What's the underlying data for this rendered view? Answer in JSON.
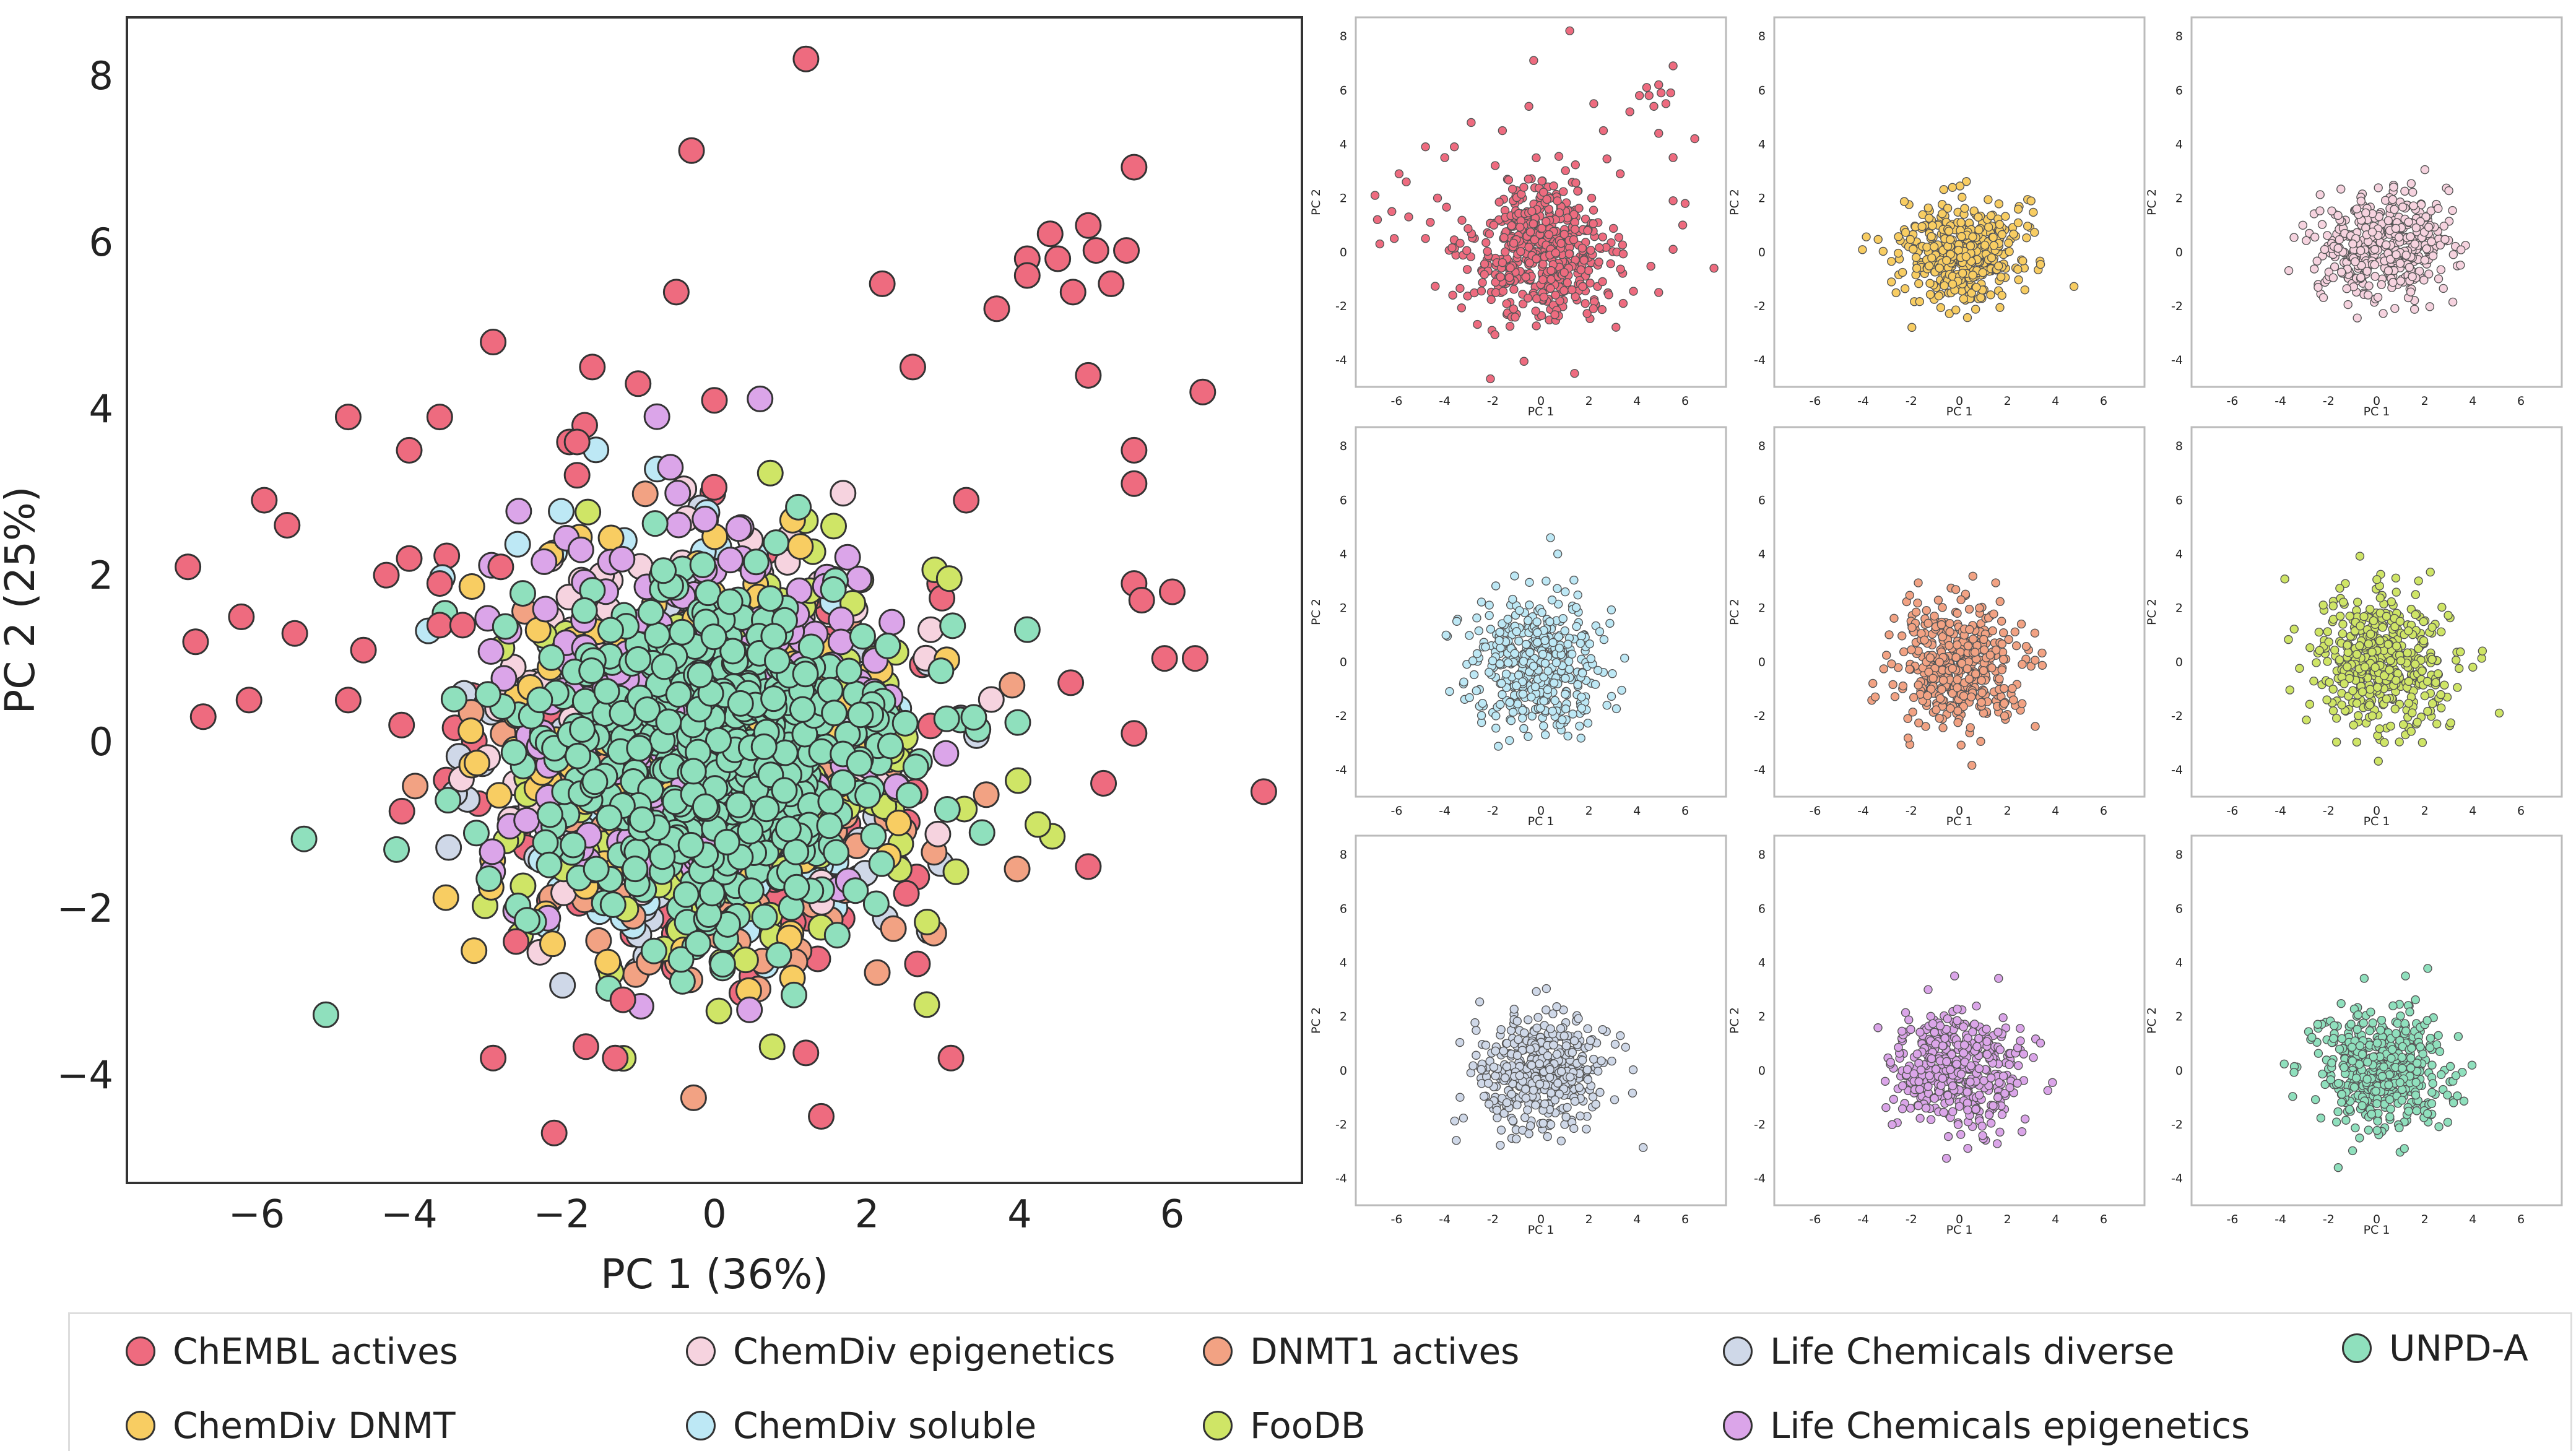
{
  "colors": {
    "ChEMBL actives": "#ee6b7f",
    "ChemDiv epigenetics": "#f6d3df",
    "DNMT1 actives": "#f2a283",
    "Life Chemicals diverse": "#cfd8e8",
    "UNPD-A": "#8fe0bd",
    "ChemDiv DNMT": "#f8cd62",
    "ChemDiv soluble": "#bde8f5",
    "FooDB": "#cfe566",
    "Life Chemicals epigenetics": "#dba5e9"
  },
  "chart_data": [
    {
      "type": "scatter",
      "id": "main",
      "xlabel": "PC 1 (36%)",
      "ylabel": "PC 2 (25%)",
      "xlim": [
        -7.7,
        7.7
      ],
      "ylim": [
        -5.3,
        8.7
      ],
      "xticks": [
        -6,
        -4,
        -2,
        0,
        2,
        4,
        6
      ],
      "yticks": [
        -4,
        -2,
        0,
        2,
        4,
        6,
        8
      ],
      "xtick_labels": [
        "−6",
        "−4",
        "−2",
        "0",
        "2",
        "4",
        "6"
      ],
      "ytick_labels": [
        "−4",
        "−2",
        "0",
        "2",
        "4",
        "6",
        "8"
      ],
      "grid": false,
      "series_order": [
        "ChEMBL actives",
        "Life Chemicals diverse",
        "ChemDiv soluble",
        "DNMT1 actives",
        "ChemDiv epigenetics",
        "FooDB",
        "ChemDiv DNMT",
        "Life Chemicals epigenetics",
        "UNPD-A"
      ],
      "outliers": {
        "name": "ChEMBL actives",
        "points": [
          [
            1.2,
            8.2
          ],
          [
            -0.3,
            7.1
          ],
          [
            5.5,
            6.9
          ],
          [
            4.9,
            6.2
          ],
          [
            4.4,
            6.1
          ],
          [
            5.0,
            5.9
          ],
          [
            5.4,
            5.9
          ],
          [
            4.1,
            5.8
          ],
          [
            4.5,
            5.8
          ],
          [
            4.1,
            5.6
          ],
          [
            4.7,
            5.4
          ],
          [
            5.2,
            5.5
          ],
          [
            2.2,
            5.5
          ],
          [
            -0.5,
            5.4
          ],
          [
            3.7,
            5.2
          ],
          [
            -2.9,
            4.8
          ],
          [
            2.6,
            4.5
          ],
          [
            -1.6,
            4.5
          ],
          [
            4.9,
            4.4
          ],
          [
            -1.0,
            4.3
          ],
          [
            6.4,
            4.2
          ],
          [
            0.0,
            4.1
          ],
          [
            -4.8,
            3.9
          ],
          [
            -3.6,
            3.9
          ],
          [
            -1.7,
            3.8
          ],
          [
            -1.9,
            3.6
          ],
          [
            -1.8,
            3.6
          ],
          [
            5.5,
            3.5
          ],
          [
            -4.0,
            3.5
          ],
          [
            -1.8,
            3.2
          ],
          [
            5.5,
            3.1
          ],
          [
            -5.9,
            2.9
          ],
          [
            3.3,
            2.9
          ],
          [
            -5.6,
            2.6
          ],
          [
            -4.0,
            2.2
          ],
          [
            -6.9,
            2.1
          ],
          [
            -2.8,
            2.1
          ],
          [
            -4.3,
            2.0
          ],
          [
            -3.6,
            1.9
          ],
          [
            5.5,
            1.9
          ],
          [
            6.0,
            1.8
          ],
          [
            5.6,
            1.7
          ],
          [
            -6.2,
            1.5
          ],
          [
            -3.6,
            1.4
          ],
          [
            -3.3,
            1.4
          ],
          [
            -5.5,
            1.3
          ],
          [
            -6.8,
            1.2
          ],
          [
            -4.6,
            1.1
          ],
          [
            5.9,
            1.0
          ],
          [
            6.3,
            1.0
          ],
          [
            -4.8,
            0.5
          ],
          [
            -6.1,
            0.5
          ],
          [
            -6.7,
            0.3
          ],
          [
            -4.1,
            0.2
          ],
          [
            5.5,
            0.1
          ],
          [
            5.1,
            -0.5
          ],
          [
            7.2,
            -0.6
          ],
          [
            4.9,
            -1.5
          ],
          [
            -2.6,
            -2.4
          ],
          [
            -1.2,
            -3.1
          ],
          [
            -2.9,
            -3.8
          ],
          [
            -1.3,
            -3.8
          ],
          [
            3.1,
            -3.8
          ],
          [
            1.4,
            -4.5
          ],
          [
            -2.1,
            -4.7
          ]
        ]
      }
    },
    {
      "type": "scatter",
      "id": "panel-1",
      "series": "ChEMBL actives",
      "xlabel": "PC 1",
      "ylabel": "PC 2",
      "xlim": [
        -7.7,
        7.7
      ],
      "ylim": [
        -5.0,
        8.7
      ],
      "xticks": [
        -6,
        -4,
        -2,
        0,
        2,
        4,
        6
      ],
      "yticks": [
        -4,
        -2,
        0,
        2,
        4,
        6,
        8
      ],
      "extra_points": [
        [
          1.2,
          8.2
        ],
        [
          -0.3,
          7.1
        ],
        [
          5.5,
          6.9
        ],
        [
          4.9,
          6.2
        ],
        [
          4.4,
          6.1
        ],
        [
          5.0,
          5.9
        ],
        [
          5.4,
          5.9
        ],
        [
          4.1,
          5.8
        ],
        [
          4.5,
          5.8
        ],
        [
          4.7,
          5.4
        ],
        [
          5.2,
          5.5
        ],
        [
          2.2,
          5.5
        ],
        [
          -0.5,
          5.4
        ],
        [
          3.7,
          5.2
        ],
        [
          -2.9,
          4.8
        ],
        [
          2.6,
          4.5
        ],
        [
          -1.6,
          4.5
        ],
        [
          4.9,
          4.4
        ],
        [
          6.4,
          4.2
        ],
        [
          -4.8,
          3.9
        ],
        [
          -3.6,
          3.9
        ],
        [
          5.5,
          3.5
        ],
        [
          -4.0,
          3.5
        ],
        [
          -5.9,
          2.9
        ],
        [
          3.3,
          2.9
        ],
        [
          -5.6,
          2.6
        ],
        [
          -6.9,
          2.1
        ],
        [
          -4.3,
          2.0
        ],
        [
          5.5,
          1.9
        ],
        [
          6.0,
          1.8
        ],
        [
          -6.2,
          1.5
        ],
        [
          -5.5,
          1.3
        ],
        [
          -6.8,
          1.2
        ],
        [
          -4.6,
          1.1
        ],
        [
          5.9,
          1.0
        ],
        [
          -4.8,
          0.5
        ],
        [
          -6.1,
          0.5
        ],
        [
          -6.7,
          0.3
        ],
        [
          5.5,
          0.1
        ],
        [
          7.2,
          -0.6
        ],
        [
          4.9,
          -1.5
        ],
        [
          -2.1,
          -4.7
        ],
        [
          1.4,
          -4.5
        ]
      ]
    },
    {
      "type": "scatter",
      "id": "panel-2",
      "series": "ChemDiv DNMT",
      "xlabel": "PC 1",
      "ylabel": "PC 2",
      "xlim": [
        -7.7,
        7.7
      ],
      "ylim": [
        -5.0,
        8.7
      ],
      "xticks": [
        -6,
        -4,
        -2,
        0,
        2,
        4,
        6
      ],
      "yticks": [
        -4,
        -2,
        0,
        2,
        4,
        6,
        8
      ]
    },
    {
      "type": "scatter",
      "id": "panel-3",
      "series": "ChemDiv epigenetics",
      "xlabel": "PC 1",
      "ylabel": "PC 2",
      "xlim": [
        -7.7,
        7.7
      ],
      "ylim": [
        -5.0,
        8.7
      ],
      "xticks": [
        -6,
        -4,
        -2,
        0,
        2,
        4,
        6
      ],
      "yticks": [
        -4,
        -2,
        0,
        2,
        4,
        6,
        8
      ]
    },
    {
      "type": "scatter",
      "id": "panel-4",
      "series": "ChemDiv soluble",
      "xlabel": "PC 1",
      "ylabel": "PC 2",
      "xlim": [
        -7.7,
        7.7
      ],
      "ylim": [
        -5.0,
        8.7
      ],
      "xticks": [
        -6,
        -4,
        -2,
        0,
        2,
        4,
        6
      ],
      "yticks": [
        -4,
        -2,
        0,
        2,
        4,
        6,
        8
      ],
      "extra_points": [
        [
          0.4,
          4.6
        ],
        [
          0.7,
          4.0
        ],
        [
          -3.5,
          1.5
        ],
        [
          -3.8,
          -1.1
        ]
      ]
    },
    {
      "type": "scatter",
      "id": "panel-5",
      "series": "DNMT1 actives",
      "xlabel": "PC 1",
      "ylabel": "PC 2",
      "xlim": [
        -7.7,
        7.7
      ],
      "ylim": [
        -5.0,
        8.7
      ],
      "xticks": [
        -6,
        -4,
        -2,
        0,
        2,
        4,
        6
      ],
      "yticks": [
        -4,
        -2,
        0,
        2,
        4,
        6,
        8
      ],
      "extra_points": [
        [
          -3.6,
          -0.8
        ],
        [
          -3.5,
          -1.3
        ]
      ]
    },
    {
      "type": "scatter",
      "id": "panel-6",
      "series": "FooDB",
      "xlabel": "PC 1",
      "ylabel": "PC 2",
      "xlim": [
        -7.7,
        7.7
      ],
      "ylim": [
        -5.0,
        8.7
      ],
      "xticks": [
        -6,
        -4,
        -2,
        0,
        2,
        4,
        6
      ],
      "yticks": [
        -4,
        -2,
        0,
        2,
        4,
        6,
        8
      ],
      "extra_points": [
        [
          5.1,
          -1.9
        ],
        [
          4.4,
          0.4
        ],
        [
          4.0,
          -0.2
        ]
      ]
    },
    {
      "type": "scatter",
      "id": "panel-7",
      "series": "Life Chemicals diverse",
      "xlabel": "PC 1",
      "ylabel": "PC 2",
      "xlim": [
        -7.7,
        7.7
      ],
      "ylim": [
        -5.0,
        8.7
      ],
      "xticks": [
        -6,
        -4,
        -2,
        0,
        2,
        4,
        6
      ],
      "yticks": [
        -4,
        -2,
        0,
        2,
        4,
        6,
        8
      ]
    },
    {
      "type": "scatter",
      "id": "panel-8",
      "series": "Life Chemicals epigenetics",
      "xlabel": "PC 1",
      "ylabel": "PC 2",
      "xlim": [
        -7.7,
        7.7
      ],
      "ylim": [
        -5.0,
        8.7
      ],
      "xticks": [
        -6,
        -4,
        -2,
        0,
        2,
        4,
        6
      ],
      "yticks": [
        -4,
        -2,
        0,
        2,
        4,
        6,
        8
      ],
      "extra_points": [
        [
          -0.2,
          3.5
        ]
      ]
    },
    {
      "type": "scatter",
      "id": "panel-9",
      "series": "UNPD-A",
      "xlabel": "PC 1",
      "ylabel": "PC 2",
      "xlim": [
        -7.7,
        7.7
      ],
      "ylim": [
        -5.0,
        8.7
      ],
      "xticks": [
        -6,
        -4,
        -2,
        0,
        2,
        4,
        6
      ],
      "yticks": [
        -4,
        -2,
        0,
        2,
        4,
        6,
        8
      ],
      "extra_points": [
        [
          1.2,
          3.5
        ]
      ]
    }
  ],
  "legend": {
    "items": [
      {
        "label": "ChEMBL actives",
        "series": "ChEMBL actives"
      },
      {
        "label": "ChemDiv epigenetics",
        "series": "ChemDiv epigenetics"
      },
      {
        "label": "DNMT1 actives",
        "series": "DNMT1 actives"
      },
      {
        "label": "Life Chemicals diverse",
        "series": "Life Chemicals diverse"
      },
      {
        "label": "UNPD-A",
        "series": "UNPD-A"
      },
      {
        "label": "ChemDiv DNMT",
        "series": "ChemDiv DNMT"
      },
      {
        "label": "ChemDiv soluble",
        "series": "ChemDiv soluble"
      },
      {
        "label": "FooDB",
        "series": "FooDB"
      },
      {
        "label": "Life Chemicals epigenetics",
        "series": "Life Chemicals epigenetics"
      }
    ]
  }
}
